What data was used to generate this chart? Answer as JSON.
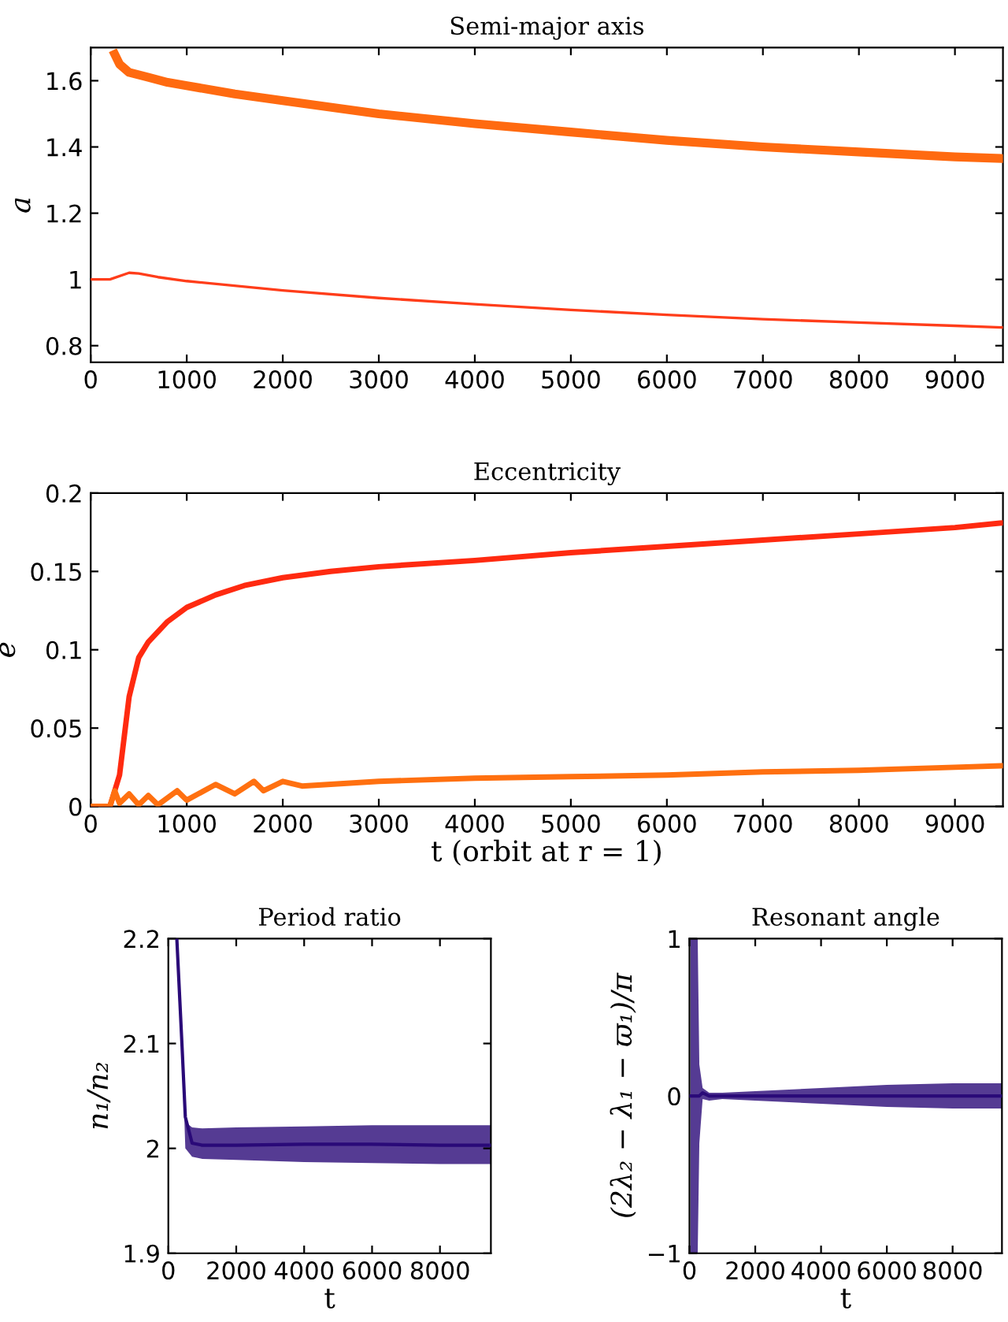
{
  "chart_data": [
    {
      "type": "line",
      "title": "Semi-major axis",
      "ylabel": "a",
      "xlim": [
        0,
        9500
      ],
      "xticks": [
        0,
        1000,
        2000,
        3000,
        4000,
        5000,
        6000,
        7000,
        8000,
        9000
      ],
      "ylim": [
        0.75,
        1.7
      ],
      "yticks": [
        0.8,
        1,
        1.2,
        1.4,
        1.6
      ],
      "grid": false,
      "series": [
        {
          "color": "#ff6a10",
          "x": [
            250,
            300,
            400,
            600,
            800,
            1000,
            1500,
            2000,
            3000,
            4000,
            5000,
            6000,
            7000,
            8000,
            9000,
            9500
          ],
          "values": [
            1.68,
            1.65,
            1.625,
            1.61,
            1.595,
            1.585,
            1.56,
            1.54,
            1.5,
            1.47,
            1.445,
            1.42,
            1.4,
            1.385,
            1.37,
            1.365
          ]
        },
        {
          "color": "#ff3d1a",
          "x": [
            0,
            200,
            400,
            500,
            700,
            1000,
            2000,
            3000,
            4000,
            5000,
            6000,
            7000,
            8000,
            9000,
            9500
          ],
          "values": [
            1.0,
            1.0,
            1.02,
            1.018,
            1.007,
            0.995,
            0.967,
            0.944,
            0.925,
            0.908,
            0.893,
            0.88,
            0.87,
            0.86,
            0.855
          ]
        }
      ]
    },
    {
      "type": "line",
      "title": "Eccentricity",
      "ylabel": "e",
      "xlabel": "t (orbit at r = 1)",
      "xlim": [
        0,
        9500
      ],
      "xticks": [
        0,
        1000,
        2000,
        3000,
        4000,
        5000,
        6000,
        7000,
        8000,
        9000
      ],
      "ylim": [
        0,
        0.2
      ],
      "yticks": [
        0,
        0.05,
        0.1,
        0.15,
        0.2
      ],
      "grid": false,
      "series": [
        {
          "color": "#ff2a10",
          "x": [
            0,
            200,
            250,
            300,
            350,
            400,
            500,
            600,
            800,
            1000,
            1300,
            1600,
            2000,
            2500,
            3000,
            4000,
            5000,
            6000,
            7000,
            8000,
            9000,
            9500
          ],
          "values": [
            0,
            0,
            0.01,
            0.02,
            0.045,
            0.07,
            0.095,
            0.105,
            0.118,
            0.127,
            0.135,
            0.141,
            0.146,
            0.15,
            0.153,
            0.157,
            0.162,
            0.166,
            0.17,
            0.174,
            0.178,
            0.181
          ]
        },
        {
          "color": "#ff7010",
          "x": [
            0,
            200,
            250,
            300,
            400,
            500,
            600,
            700,
            900,
            1000,
            1300,
            1500,
            1700,
            1800,
            2000,
            2200,
            3000,
            4000,
            5000,
            6000,
            7000,
            8000,
            9000,
            9500
          ],
          "values": [
            0,
            0,
            0.01,
            0.002,
            0.008,
            0.001,
            0.007,
            0.001,
            0.01,
            0.004,
            0.014,
            0.008,
            0.016,
            0.01,
            0.016,
            0.013,
            0.016,
            0.018,
            0.019,
            0.02,
            0.022,
            0.023,
            0.025,
            0.026
          ]
        }
      ]
    },
    {
      "type": "line",
      "title": "Period ratio",
      "ylabel": "n₁/n₂",
      "xlabel": "t",
      "xlim": [
        0,
        9500
      ],
      "xticks": [
        0,
        2000,
        4000,
        6000,
        8000
      ],
      "ylim": [
        1.9,
        2.2
      ],
      "yticks": [
        1.9,
        2,
        2.1,
        2.2
      ],
      "grid": false,
      "series": [
        {
          "color": "#2a0a78",
          "x": [
            250,
            400,
            500,
            700,
            1000,
            2000,
            4000,
            6000,
            8000,
            9500
          ],
          "values": [
            2.2,
            2.1,
            2.03,
            2.005,
            2.003,
            2.003,
            2.004,
            2.004,
            2.003,
            2.003
          ],
          "lower": [
            2.2,
            2.1,
            2.0,
            1.992,
            1.99,
            1.989,
            1.987,
            1.986,
            1.985,
            1.985
          ],
          "upper": [
            2.2,
            2.1,
            2.025,
            2.02,
            2.019,
            2.02,
            2.021,
            2.022,
            2.022,
            2.022
          ]
        }
      ]
    },
    {
      "type": "line",
      "title": "Resonant angle",
      "ylabel": "(2λ₂ − λ₁ − ϖ₁)/π",
      "xlabel": "t",
      "xlim": [
        0,
        9500
      ],
      "xticks": [
        0,
        2000,
        4000,
        6000,
        8000
      ],
      "ylim": [
        -1,
        1
      ],
      "yticks": [
        {
          "value": -1,
          "label": "−1"
        },
        0,
        1
      ],
      "grid": false,
      "series": [
        {
          "color": "#2a0a78",
          "x": [
            30,
            250,
            300,
            400,
            600,
            1000,
            2000,
            4000,
            6000,
            8000,
            9500
          ],
          "values": [
            0,
            0,
            0,
            0.02,
            0,
            0,
            0,
            0,
            0,
            0,
            0
          ],
          "lower": [
            -1,
            -1,
            -0.3,
            -0.02,
            -0.03,
            -0.02,
            -0.03,
            -0.05,
            -0.07,
            -0.08,
            -0.08
          ],
          "upper": [
            1,
            1,
            0.2,
            0.05,
            0.02,
            0.02,
            0.03,
            0.05,
            0.07,
            0.08,
            0.08
          ]
        }
      ]
    }
  ]
}
